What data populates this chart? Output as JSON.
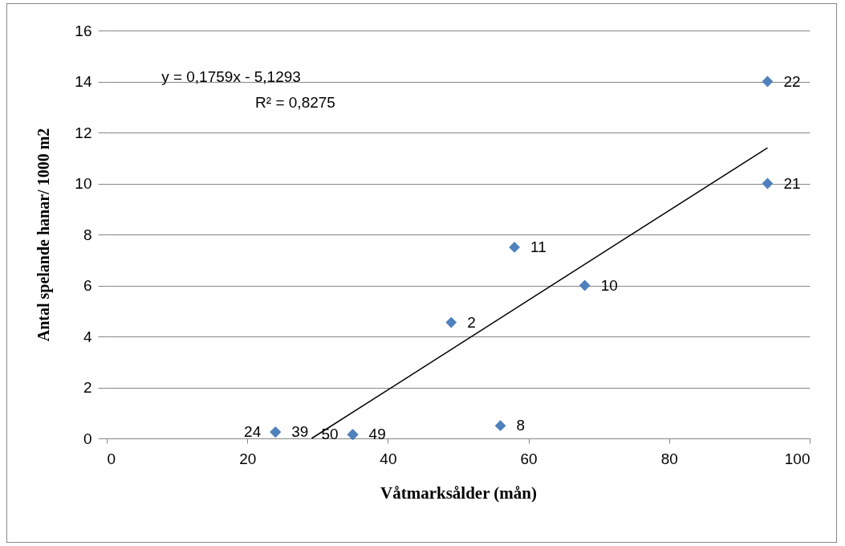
{
  "chart_data": {
    "type": "scatter",
    "xlabel": "Våtmarksålder (mån)",
    "ylabel": "Antal spelande hanar/ 1000 m2",
    "xlim": [
      0,
      100
    ],
    "xticks": [
      0,
      20,
      40,
      60,
      80,
      100
    ],
    "ylim": [
      0,
      16
    ],
    "yticks": [
      0,
      2,
      4,
      6,
      8,
      10,
      12,
      14,
      16
    ],
    "grid": "y",
    "marker": "diamond",
    "series": [
      {
        "color": "#4f81bd",
        "x": [
          24,
          24,
          35,
          35,
          49,
          56,
          58,
          68,
          94,
          94
        ],
        "values": [
          0.25,
          0.25,
          0.15,
          0.15,
          4.55,
          0.5,
          7.5,
          6,
          14,
          10
        ]
      },
      {
        "type": "line",
        "marker": "none",
        "color": "#000000",
        "x": [
          29.16,
          94
        ],
        "values": [
          0,
          11.4
        ]
      }
    ],
    "annotations": [
      "y = 0,1759x - 5,1293",
      "R² = 0,8275",
      {
        "text": "24",
        "x": 24,
        "y": 0.25
      },
      {
        "text": "39",
        "x": 24,
        "y": 0.25
      },
      {
        "text": "50",
        "x": 35,
        "y": 0.15
      },
      {
        "text": "49",
        "x": 35,
        "y": 0.15
      },
      {
        "text": "2",
        "x": 49,
        "y": 4.55
      },
      {
        "text": "8",
        "x": 56,
        "y": 0.5
      },
      {
        "text": "11",
        "x": 58,
        "y": 7.5
      },
      {
        "text": "10",
        "x": 68,
        "y": 6
      },
      {
        "text": "22",
        "x": 94,
        "y": 14
      },
      {
        "text": "21",
        "x": 94,
        "y": 10
      }
    ]
  }
}
